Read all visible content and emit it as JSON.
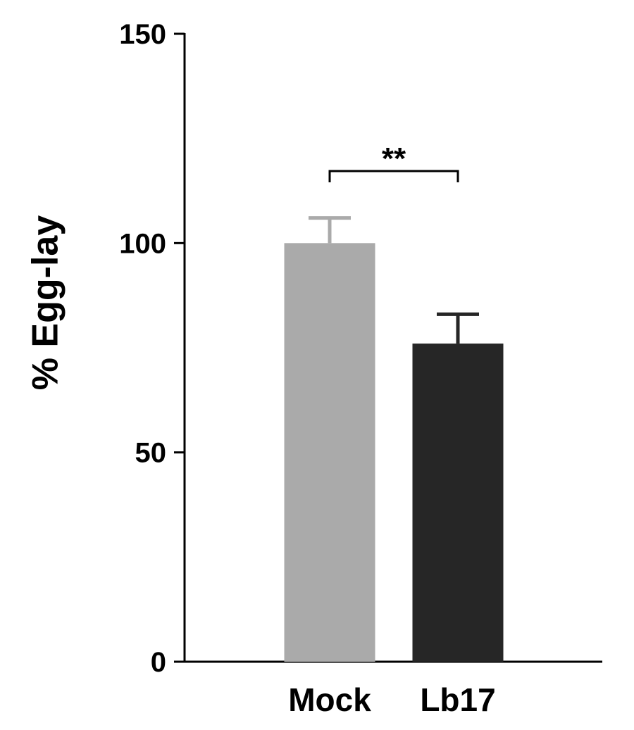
{
  "chart_data": {
    "type": "bar",
    "y_label": "% Egg-lay",
    "categories": [
      "Mock",
      "Lb17"
    ],
    "values": [
      100,
      76
    ],
    "errors": [
      6,
      7
    ],
    "colors": [
      "#aaaaaa",
      "#262626"
    ],
    "ylim": [
      0,
      150
    ],
    "yticks": [
      0,
      50,
      100,
      150
    ],
    "annotation": "**",
    "grid": false
  }
}
